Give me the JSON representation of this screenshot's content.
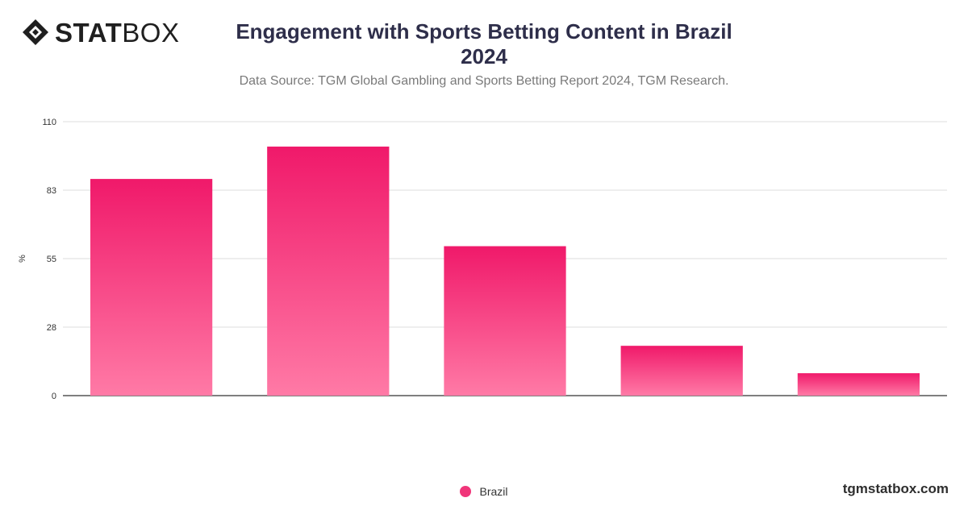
{
  "brand": {
    "logo_bold": "STAT",
    "logo_light": "BOX",
    "site": "tgmstatbox.com"
  },
  "chart_data": {
    "type": "bar",
    "title": "Engagement with Sports Betting Content in Brazil\n2024",
    "subtitle": "Data Source: TGM Global Gambling and Sports Betting Report 2024, TGM Research.",
    "ylabel": "%",
    "xlabel": "",
    "ylim": [
      0,
      110
    ],
    "yticks": [
      "0",
      "28",
      "55",
      "83",
      "110"
    ],
    "ytick_values": [
      0,
      27.5,
      55,
      82.5,
      110
    ],
    "categories": [
      "",
      "",
      "",
      "",
      ""
    ],
    "series": [
      {
        "name": "Brazil",
        "values": [
          87,
          100,
          60,
          20,
          9
        ]
      }
    ],
    "grid": true,
    "legend": "bottom-center",
    "colors": {
      "bar_top": "#f0196a",
      "bar_bottom": "#ff7aa6",
      "legend": "#f0357a",
      "grid": "#dddddd",
      "axis": "#333333"
    }
  }
}
